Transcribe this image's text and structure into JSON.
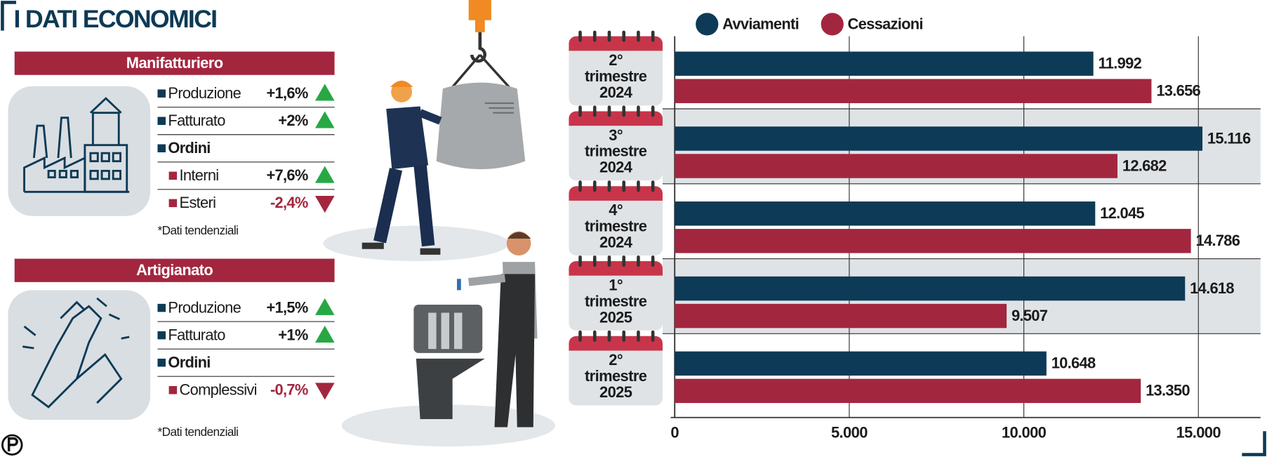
{
  "title": "I DATI ECONOMICI",
  "panels": [
    {
      "title": "Manifatturiero",
      "rows": [
        {
          "label": "Produzione",
          "value": "+1,6%",
          "trend": "up"
        },
        {
          "label": "Fatturato",
          "value": "+2%",
          "trend": "up"
        },
        {
          "label": "Ordini",
          "children": [
            {
              "label": "Interni",
              "value": "+7,6%",
              "trend": "up"
            },
            {
              "label": "Esteri",
              "value": "-2,4%",
              "trend": "down"
            }
          ]
        }
      ],
      "note": "*Dati tendenziali"
    },
    {
      "title": "Artigianato",
      "rows": [
        {
          "label": "Produzione",
          "value": "+1,5%",
          "trend": "up"
        },
        {
          "label": "Fatturato",
          "value": "+1%",
          "trend": "up"
        },
        {
          "label": "Ordini",
          "children": [
            {
              "label": "Complessivi",
              "value": "-0,7%",
              "trend": "down"
            }
          ]
        }
      ],
      "note": "*Dati tendenziali"
    }
  ],
  "chart_data": {
    "type": "bar",
    "orientation": "horizontal",
    "categories": [
      "2° trimestre 2024",
      "3° trimestre 2024",
      "4° trimestre 2024",
      "1° trimestre 2025",
      "2° trimestre 2025"
    ],
    "series": [
      {
        "name": "Avviamenti",
        "color": "#0d3a56",
        "values": [
          11992,
          15116,
          12045,
          14618,
          10648
        ],
        "value_labels": [
          "11.992",
          "15.116",
          "12.045",
          "14.618",
          "10.648"
        ]
      },
      {
        "name": "Cessazioni",
        "color": "#a3263f",
        "values": [
          13656,
          12682,
          14786,
          9507,
          13350
        ],
        "value_labels": [
          "13.656",
          "12.682",
          "14.786",
          "9.507",
          "13.350"
        ]
      }
    ],
    "xlim": [
      0,
      16780
    ],
    "xticks": [
      0,
      {
        "value": 5000,
        "label": "5.000"
      },
      {
        "value": 10000,
        "label": "10.000"
      },
      {
        "value": 15000,
        "label": "15.000"
      }
    ],
    "grid": true,
    "legend": "top"
  }
}
